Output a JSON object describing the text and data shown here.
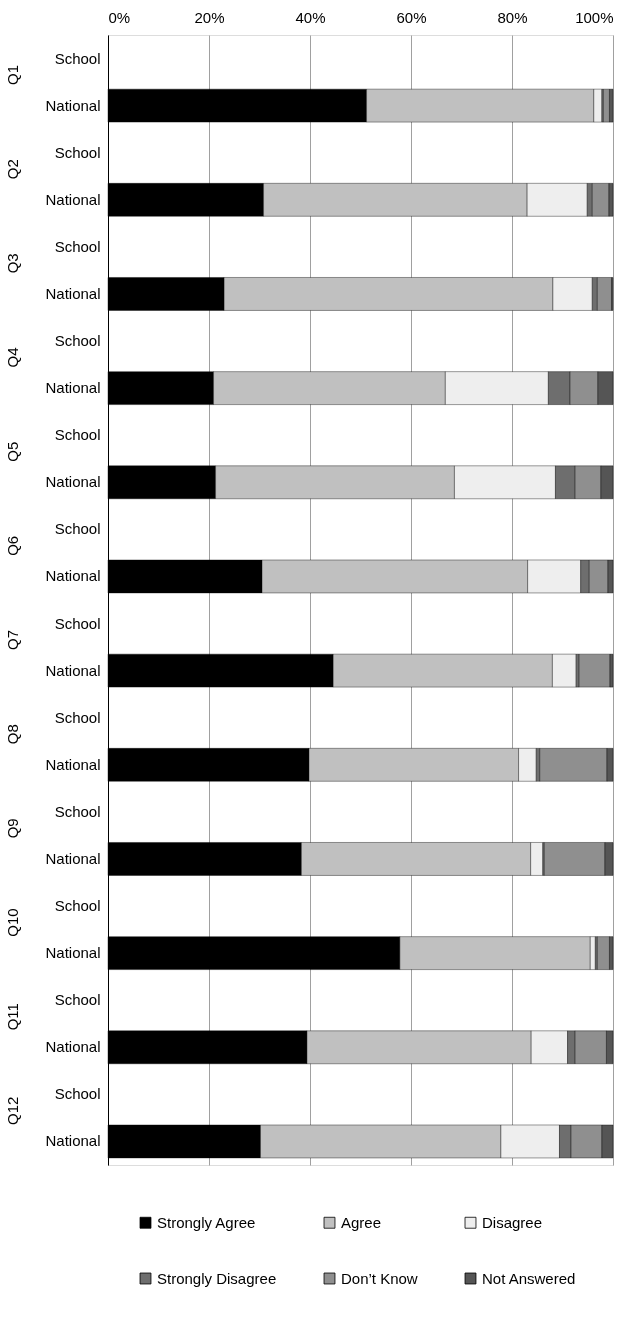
{
  "chart_data": {
    "type": "bar",
    "orientation": "horizontal",
    "stacked": true,
    "categories": [
      "School",
      "National",
      "School",
      "National",
      "School",
      "National",
      "School",
      "National",
      "School",
      "National",
      "School",
      "National",
      "School",
      "National",
      "School",
      "National",
      "School",
      "National",
      "School",
      "National",
      "School",
      "National",
      "School",
      "National"
    ],
    "annotations": [
      "Q1",
      "Q2",
      "Q3",
      "Q4",
      "Q5",
      "Q6",
      "Q7",
      "Q8",
      "Q9",
      "Q10",
      "Q11",
      "Q12"
    ],
    "series": [
      {
        "name": "Strongly Agree",
        "color": "#000000",
        "values": [
          null,
          51.2,
          null,
          30.8,
          null,
          23.0,
          null,
          20.9,
          null,
          21.3,
          null,
          30.5,
          null,
          44.6,
          null,
          39.8,
          null,
          38.3,
          null,
          57.8,
          null,
          39.4,
          null,
          30.2
        ]
      },
      {
        "name": "Agree",
        "color": "#c0c0c0",
        "values": [
          null,
          45.0,
          null,
          52.2,
          null,
          65.1,
          null,
          45.9,
          null,
          47.3,
          null,
          52.6,
          null,
          43.4,
          null,
          41.5,
          null,
          45.4,
          null,
          37.7,
          null,
          44.4,
          null,
          47.6
        ]
      },
      {
        "name": "Disagree",
        "color": "#eeeeee",
        "values": [
          null,
          1.6,
          null,
          11.9,
          null,
          7.8,
          null,
          20.4,
          null,
          20.0,
          null,
          10.5,
          null,
          4.7,
          null,
          3.5,
          null,
          2.4,
          null,
          1.0,
          null,
          7.2,
          null,
          11.6
        ]
      },
      {
        "name": "Strongly Disagree",
        "color": "#6e6e6e",
        "values": [
          null,
          0.3,
          null,
          1.0,
          null,
          1.0,
          null,
          4.3,
          null,
          3.9,
          null,
          1.7,
          null,
          0.6,
          null,
          0.7,
          null,
          0.3,
          null,
          0.4,
          null,
          1.5,
          null,
          2.3
        ]
      },
      {
        "name": "Don’t Know",
        "color": "#8f8f8f",
        "values": [
          null,
          1.2,
          null,
          3.3,
          null,
          2.8,
          null,
          5.5,
          null,
          5.1,
          null,
          3.7,
          null,
          6.1,
          null,
          13.3,
          null,
          12.0,
          null,
          2.4,
          null,
          6.2,
          null,
          6.1
        ]
      },
      {
        "name": "Not Answered",
        "color": "#555555",
        "values": [
          null,
          0.7,
          null,
          0.8,
          null,
          0.3,
          null,
          3.0,
          null,
          2.4,
          null,
          1.0,
          null,
          0.6,
          null,
          1.2,
          null,
          1.6,
          null,
          0.7,
          null,
          1.3,
          null,
          2.2
        ]
      }
    ],
    "xlim": [
      0,
      100
    ],
    "xticks": [
      {
        "value": 0,
        "label": "0%"
      },
      {
        "value": 20,
        "label": "20%"
      },
      {
        "value": 40,
        "label": "40%"
      },
      {
        "value": 60,
        "label": "60%"
      },
      {
        "value": 80,
        "label": "80%"
      },
      {
        "value": 100,
        "label": "100%"
      }
    ],
    "grid": "x",
    "legend": "bottom"
  }
}
